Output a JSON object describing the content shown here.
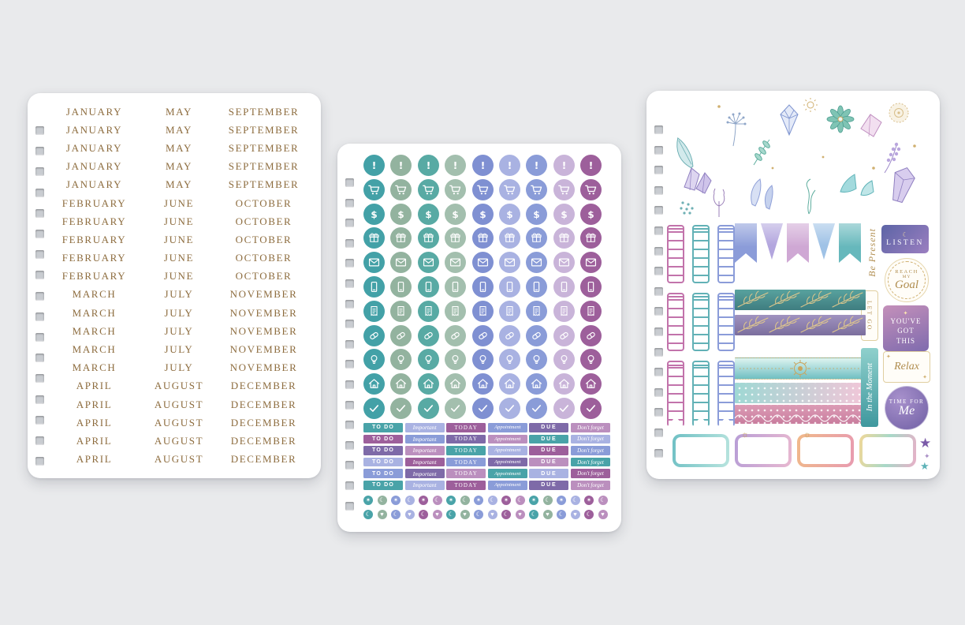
{
  "background": "#e9eaec",
  "icons": {
    "star": "✶",
    "moon": "☾",
    "heart": "♥",
    "sun": "☼",
    "sparkle": "✦",
    "star_solid": "★"
  },
  "sheet1": {
    "name": "monthly-headers-sticker-sheet",
    "hole_count": 17,
    "text_color": "#8d6c3e",
    "month_rows": [
      [
        "JANUARY",
        "MAY",
        "SEPTEMBER"
      ],
      [
        "JANUARY",
        "MAY",
        "SEPTEMBER"
      ],
      [
        "JANUARY",
        "MAY",
        "SEPTEMBER"
      ],
      [
        "JANUARY",
        "MAY",
        "SEPTEMBER"
      ],
      [
        "JANUARY",
        "MAY",
        "SEPTEMBER"
      ],
      [
        "FEBRUARY",
        "JUNE",
        "OCTOBER"
      ],
      [
        "FEBRUARY",
        "JUNE",
        "OCTOBER"
      ],
      [
        "FEBRUARY",
        "JUNE",
        "OCTOBER"
      ],
      [
        "FEBRUARY",
        "JUNE",
        "OCTOBER"
      ],
      [
        "FEBRUARY",
        "JUNE",
        "OCTOBER"
      ],
      [
        "MARCH",
        "JULY",
        "NOVEMBER"
      ],
      [
        "MARCH",
        "JULY",
        "NOVEMBER"
      ],
      [
        "MARCH",
        "JULY",
        "NOVEMBER"
      ],
      [
        "MARCH",
        "JULY",
        "NOVEMBER"
      ],
      [
        "MARCH",
        "JULY",
        "NOVEMBER"
      ],
      [
        "APRIL",
        "AUGUST",
        "DECEMBER"
      ],
      [
        "APRIL",
        "AUGUST",
        "DECEMBER"
      ],
      [
        "APRIL",
        "AUGUST",
        "DECEMBER"
      ],
      [
        "APRIL",
        "AUGUST",
        "DECEMBER"
      ],
      [
        "APRIL",
        "AUGUST",
        "DECEMBER"
      ]
    ]
  },
  "sheet2": {
    "name": "functional-icon-sticker-sheet",
    "hole_count": 17,
    "icon_rows": [
      "exclamation",
      "cart",
      "dollar",
      "gift",
      "mail",
      "phone",
      "receipt",
      "pill",
      "bulb",
      "house",
      "check"
    ],
    "circle_columns": [
      "#43a1a7",
      "#93b39f",
      "#58aaa4",
      "#a3bfae",
      "#7f90d2",
      "#a9b2e2",
      "#8a9cd8",
      "#c9b4d9",
      "#9d5f9b"
    ],
    "label_texts": [
      "TO DO",
      "Important",
      "TODAY",
      "Appointment",
      "DUE",
      "Don't forget"
    ],
    "label_rows": 6,
    "label_palette": [
      "#49a3a8",
      "#a9b2e2",
      "#9d5f9b",
      "#8a9cd8",
      "#7e6aa8",
      "#bb8fbe"
    ],
    "dot_rows": [
      {
        "glyphs": [
          "star",
          "moon"
        ],
        "count": 18
      },
      {
        "glyphs": [
          "moon",
          "heart"
        ],
        "count": 18
      }
    ],
    "dot_palette": [
      "#49a3a8",
      "#93b39f",
      "#8a9cd8",
      "#a9b2e2",
      "#9d5f9b",
      "#bb8fbe"
    ]
  },
  "sheet3": {
    "name": "decorative-mystic-sticker-sheet",
    "hole_count": 17,
    "gold": "#b08d4f",
    "labels": {
      "be_present": "Be Present",
      "listen": "LISTEN",
      "reach_line1": "REACH",
      "reach_line2": "MY",
      "reach_line3": "Goal",
      "let_go": "LET GO",
      "ygt_line1": "YOU'VE",
      "ygt_line2": "GOT",
      "ygt_line3": "THIS",
      "relax": "Relax",
      "in_the_moment": "In the Moment",
      "time_line1": "TIME FOR",
      "time_line2": "Me"
    },
    "ladder_colors": [
      "#c273ab",
      "#62b1b6",
      "#8b9cd9"
    ],
    "flags": [
      {
        "shape": "swallowtail",
        "color": "#8b9cd9"
      },
      {
        "shape": "pennant",
        "color": "#b3a6de"
      },
      {
        "shape": "swallowtail",
        "color": "#cfa8d4"
      },
      {
        "shape": "pennant",
        "color": "#9fc2e6"
      },
      {
        "shape": "swallowtail",
        "color": "#66b8bc"
      }
    ],
    "washi_styles": [
      "botanical-teal",
      "botanical-purple",
      "gradient-gold-medallion",
      "lace-gradient",
      "lace-pink-scallop"
    ],
    "bottom_labels": [
      {
        "border": [
          "#6fc0c4",
          "#b8e4de"
        ],
        "decor": ""
      },
      {
        "border": [
          "#b89ed6",
          "#e8b8d0"
        ],
        "decor": "sun"
      },
      {
        "border": [
          "#f0b98a",
          "#e89bb0"
        ],
        "decor": "sun"
      },
      {
        "border": [
          "#f0d898",
          "#a8d8c8",
          "#e8b0c8"
        ],
        "decor": ""
      }
    ],
    "decor_items": [
      "feather",
      "dandelion",
      "crystal-cluster",
      "leaf-sprig",
      "gem",
      "sun",
      "succulent",
      "pink-crystal",
      "gold-medallion",
      "lavender-sprig",
      "ginkgo-leaf",
      "purple-crystal",
      "seaweed",
      "blue-feather",
      "coral",
      "pom-flower",
      "gold-dots"
    ]
  }
}
